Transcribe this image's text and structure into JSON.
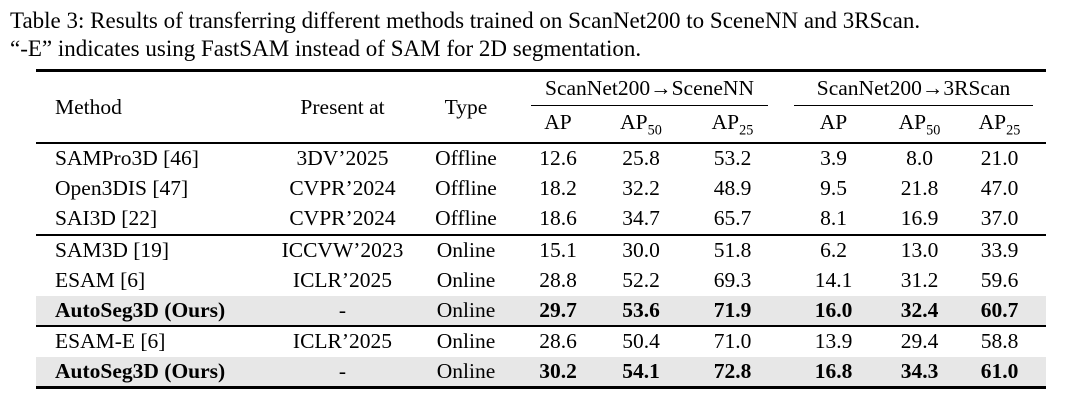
{
  "caption": {
    "line1": "Table 3: Results of transferring different methods trained on ScanNet200 to SceneNN and 3RScan.",
    "line2": "“-E” indicates using FastSAM instead of SAM for 2D segmentation."
  },
  "table": {
    "header": {
      "method": "Method",
      "present_at": "Present at",
      "type": "Type",
      "group1": "ScanNet200→SceneNN",
      "group2": "ScanNet200→3RScan",
      "ap": "AP",
      "sub50": "50",
      "sub25": "25"
    },
    "rows": [
      {
        "method": "SAMPro3D [46]",
        "present_at": "3DV’2025",
        "type": "Offline",
        "values": [
          "12.6",
          "25.8",
          "53.2",
          "3.9",
          "8.0",
          "21.0"
        ]
      },
      {
        "method": "Open3DIS [47]",
        "present_at": "CVPR’2024",
        "type": "Offline",
        "values": [
          "18.2",
          "32.2",
          "48.9",
          "9.5",
          "21.8",
          "47.0"
        ]
      },
      {
        "method": "SAI3D [22]",
        "present_at": "CVPR’2024",
        "type": "Offline",
        "values": [
          "18.6",
          "34.7",
          "65.7",
          "8.1",
          "16.9",
          "37.0"
        ]
      },
      {
        "method": "SAM3D [19]",
        "present_at": "ICCVW’2023",
        "type": "Online",
        "values": [
          "15.1",
          "30.0",
          "51.8",
          "6.2",
          "13.0",
          "33.9"
        ]
      },
      {
        "method": "ESAM [6]",
        "present_at": "ICLR’2025",
        "type": "Online",
        "values": [
          "28.8",
          "52.2",
          "69.3",
          "14.1",
          "31.2",
          "59.6"
        ]
      },
      {
        "method": "AutoSeg3D (Ours)",
        "present_at": "-",
        "type": "Online",
        "values": [
          "29.7",
          "53.6",
          "71.9",
          "16.0",
          "32.4",
          "60.7"
        ]
      },
      {
        "method": "ESAM-E [6]",
        "present_at": "ICLR’2025",
        "type": "Online",
        "values": [
          "28.6",
          "50.4",
          "71.0",
          "13.9",
          "29.4",
          "58.8"
        ]
      },
      {
        "method": "AutoSeg3D (Ours)",
        "present_at": "-",
        "type": "Online",
        "values": [
          "30.2",
          "54.1",
          "72.8",
          "16.8",
          "34.3",
          "61.0"
        ]
      }
    ]
  },
  "colors": {
    "background": "#ffffff",
    "text": "#000000",
    "rule": "#000000",
    "highlight_row": "#e7e7e7"
  }
}
